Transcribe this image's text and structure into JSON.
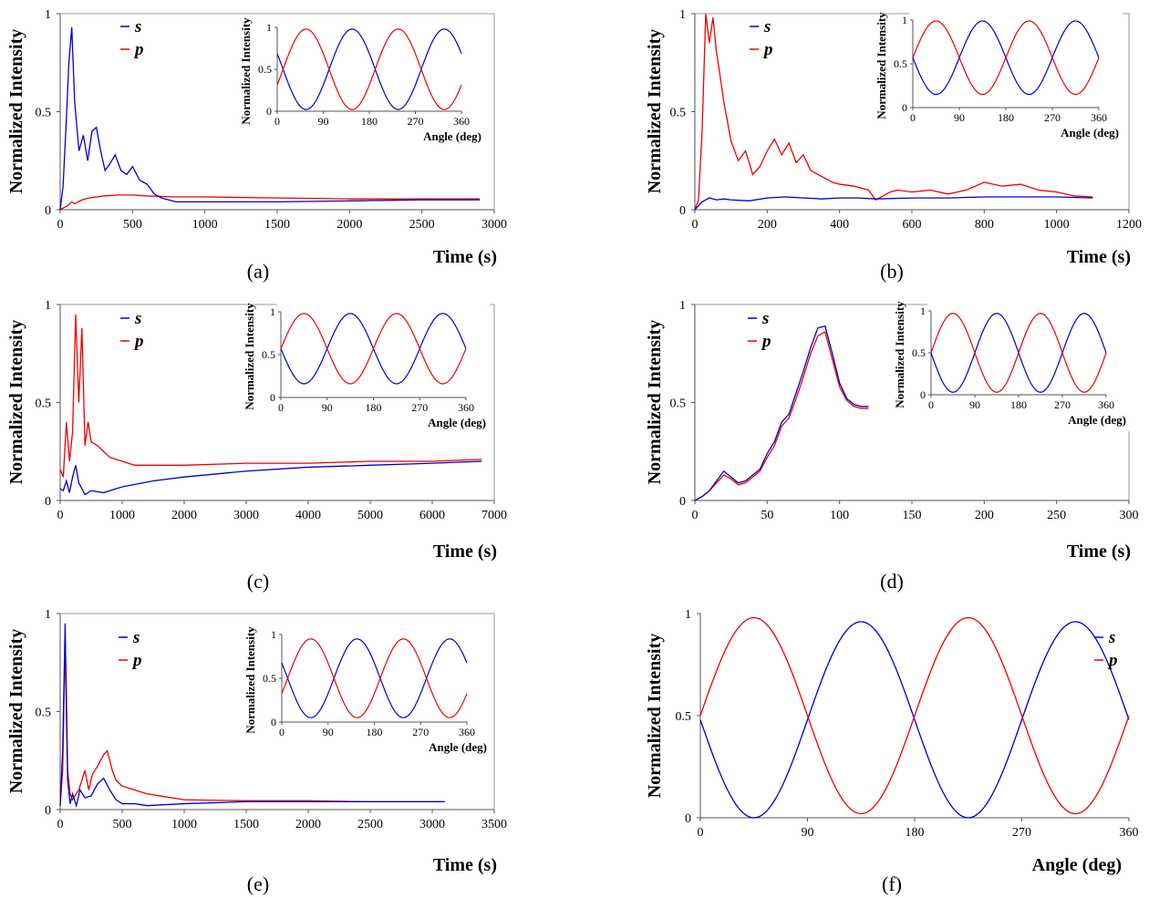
{
  "colors": {
    "s": "#0000cc",
    "p": "#ee0000",
    "frame": "#999999"
  },
  "chart_data": [
    {
      "type": "line",
      "panel_label": "(a)",
      "xlabel": "Time (s)",
      "ylabel": "Normalized Intensity",
      "xticks": [
        "0",
        "500",
        "1000",
        "1500",
        "2000",
        "2500",
        "3000"
      ],
      "yticks": [
        "0",
        "0.5",
        "1"
      ],
      "xlim": [
        0,
        3000
      ],
      "ylim": [
        0,
        1
      ],
      "series": [
        {
          "name": "s",
          "x": [
            0,
            20,
            40,
            60,
            80,
            100,
            130,
            160,
            190,
            220,
            250,
            280,
            310,
            340,
            380,
            420,
            460,
            500,
            550,
            600,
            650,
            700,
            800,
            1000,
            1500,
            2000,
            2500,
            2900
          ],
          "y": [
            0,
            0.12,
            0.42,
            0.75,
            0.93,
            0.55,
            0.3,
            0.38,
            0.25,
            0.4,
            0.42,
            0.3,
            0.2,
            0.23,
            0.28,
            0.2,
            0.18,
            0.22,
            0.15,
            0.13,
            0.08,
            0.06,
            0.04,
            0.04,
            0.04,
            0.045,
            0.05,
            0.05
          ]
        },
        {
          "name": "p",
          "x": [
            0,
            50,
            80,
            100,
            150,
            200,
            300,
            400,
            500,
            600,
            800,
            1000,
            1500,
            2000,
            2500,
            2900
          ],
          "y": [
            0,
            0.02,
            0.04,
            0.03,
            0.05,
            0.06,
            0.07,
            0.075,
            0.075,
            0.07,
            0.065,
            0.065,
            0.06,
            0.055,
            0.055,
            0.055
          ]
        }
      ],
      "inset": {
        "xlabel": "Angle (deg)",
        "ylabel": "Normalized Intensity",
        "xticks": [
          "0",
          "90",
          "180",
          "270",
          "360"
        ],
        "yticks": [
          "0",
          "0.5",
          "1"
        ],
        "s_amp": [
          0.5,
          0.48
        ],
        "p_amp": [
          0.5,
          0.48
        ],
        "phase": 0
      }
    },
    {
      "type": "line",
      "panel_label": "(b)",
      "xlabel": "Time (s)",
      "ylabel": "Normalized Intensity",
      "xticks": [
        "0",
        "200",
        "400",
        "600",
        "800",
        "1000",
        "1200"
      ],
      "yticks": [
        "0",
        "0.5",
        "1"
      ],
      "xlim": [
        0,
        1200
      ],
      "ylim": [
        0,
        1
      ],
      "series": [
        {
          "name": "s",
          "x": [
            0,
            20,
            40,
            60,
            80,
            100,
            150,
            200,
            250,
            300,
            350,
            400,
            450,
            500,
            600,
            700,
            800,
            900,
            1000,
            1100
          ],
          "y": [
            0,
            0.04,
            0.06,
            0.05,
            0.055,
            0.05,
            0.045,
            0.06,
            0.065,
            0.06,
            0.055,
            0.06,
            0.06,
            0.055,
            0.06,
            0.06,
            0.065,
            0.065,
            0.065,
            0.06
          ]
        },
        {
          "name": "p",
          "x": [
            0,
            10,
            20,
            30,
            40,
            50,
            60,
            70,
            80,
            90,
            100,
            120,
            140,
            160,
            180,
            200,
            220,
            240,
            260,
            280,
            300,
            320,
            340,
            360,
            380,
            400,
            440,
            480,
            500,
            520,
            540,
            560,
            600,
            650,
            700,
            750,
            800,
            850,
            900,
            950,
            1000,
            1050,
            1100
          ],
          "y": [
            0,
            0.05,
            0.4,
            1,
            0.85,
            0.98,
            0.8,
            0.68,
            0.55,
            0.45,
            0.35,
            0.25,
            0.3,
            0.18,
            0.22,
            0.3,
            0.36,
            0.28,
            0.34,
            0.24,
            0.28,
            0.2,
            0.18,
            0.16,
            0.14,
            0.13,
            0.12,
            0.1,
            0.05,
            0.07,
            0.09,
            0.1,
            0.09,
            0.1,
            0.08,
            0.1,
            0.14,
            0.12,
            0.13,
            0.1,
            0.09,
            0.07,
            0.065
          ]
        }
      ],
      "inset": {
        "xlabel": "Angle (deg)",
        "ylabel": "Normalized Intensity",
        "xticks": [
          "0",
          "90",
          "180",
          "270",
          "360"
        ],
        "yticks": [
          "0",
          "0.5",
          "1"
        ],
        "s_amp": [
          0.57,
          0.42
        ],
        "p_amp": [
          0.57,
          0.42
        ],
        "phase": 1
      }
    },
    {
      "type": "line",
      "panel_label": "(c)",
      "xlabel": "Time (s)",
      "ylabel": "Normalized Intensity",
      "xticks": [
        "0",
        "1000",
        "2000",
        "3000",
        "4000",
        "5000",
        "6000",
        "7000"
      ],
      "yticks": [
        "0",
        "0.5",
        "1"
      ],
      "xlim": [
        0,
        7000
      ],
      "ylim": [
        0,
        1
      ],
      "series": [
        {
          "name": "s",
          "x": [
            0,
            50,
            100,
            150,
            200,
            250,
            300,
            350,
            400,
            500,
            700,
            1000,
            1500,
            2000,
            3000,
            4000,
            5000,
            6000,
            6800
          ],
          "y": [
            0.06,
            0.05,
            0.1,
            0.04,
            0.12,
            0.18,
            0.09,
            0.06,
            0.03,
            0.05,
            0.04,
            0.07,
            0.1,
            0.12,
            0.15,
            0.17,
            0.18,
            0.19,
            0.2
          ]
        },
        {
          "name": "p",
          "x": [
            0,
            50,
            100,
            150,
            200,
            250,
            300,
            350,
            400,
            450,
            500,
            600,
            700,
            800,
            1000,
            1200,
            1500,
            2000,
            3000,
            4000,
            5000,
            6000,
            6800
          ],
          "y": [
            0.16,
            0.12,
            0.4,
            0.2,
            0.35,
            0.95,
            0.5,
            0.88,
            0.28,
            0.4,
            0.3,
            0.28,
            0.25,
            0.22,
            0.2,
            0.18,
            0.18,
            0.18,
            0.19,
            0.19,
            0.2,
            0.2,
            0.21
          ]
        }
      ],
      "inset": {
        "xlabel": "Angle (deg)",
        "ylabel": "Normalized Intensity",
        "xticks": [
          "0",
          "90",
          "180",
          "270",
          "360"
        ],
        "yticks": [
          "0",
          "0.5",
          "1"
        ],
        "s_amp": [
          0.57,
          0.41
        ],
        "p_amp": [
          0.57,
          0.41
        ],
        "phase": 1
      }
    },
    {
      "type": "line",
      "panel_label": "(d)",
      "xlabel": "Time (s)",
      "ylabel": "Normalized Intensity",
      "xticks": [
        "0",
        "50",
        "100",
        "150",
        "200",
        "250",
        "300"
      ],
      "yticks": [
        "0",
        "0.5",
        "1"
      ],
      "xlim": [
        0,
        300
      ],
      "ylim": [
        0,
        1
      ],
      "series": [
        {
          "name": "s",
          "x": [
            0,
            5,
            10,
            15,
            20,
            25,
            30,
            35,
            40,
            45,
            50,
            55,
            60,
            65,
            70,
            75,
            80,
            85,
            90,
            95,
            100,
            105,
            110,
            115,
            120
          ],
          "y": [
            0,
            0.02,
            0.05,
            0.1,
            0.15,
            0.12,
            0.09,
            0.1,
            0.13,
            0.16,
            0.24,
            0.3,
            0.4,
            0.44,
            0.55,
            0.66,
            0.78,
            0.88,
            0.89,
            0.75,
            0.6,
            0.52,
            0.49,
            0.48,
            0.48
          ]
        },
        {
          "name": "p",
          "x": [
            0,
            5,
            10,
            15,
            20,
            25,
            30,
            35,
            40,
            45,
            50,
            55,
            60,
            65,
            70,
            75,
            80,
            85,
            90,
            95,
            100,
            105,
            110,
            115,
            120
          ],
          "y": [
            0,
            0.02,
            0.05,
            0.09,
            0.13,
            0.11,
            0.08,
            0.09,
            0.12,
            0.15,
            0.22,
            0.28,
            0.38,
            0.42,
            0.52,
            0.63,
            0.75,
            0.84,
            0.86,
            0.72,
            0.58,
            0.51,
            0.48,
            0.47,
            0.47
          ]
        }
      ],
      "inset": {
        "xlabel": "Angle (deg)",
        "ylabel": "Normalized Intensity",
        "xticks": [
          "0",
          "90",
          "180",
          "270",
          "360"
        ],
        "yticks": [
          "0",
          "0.5",
          "1"
        ],
        "s_amp": [
          0.5,
          0.47
        ],
        "p_amp": [
          0.5,
          0.47
        ],
        "phase": 1
      }
    },
    {
      "type": "line",
      "panel_label": "(e)",
      "xlabel": "Time (s)",
      "ylabel": "Normalized Intensity",
      "xticks": [
        "0",
        "500",
        "1000",
        "1500",
        "2000",
        "2500",
        "3000",
        "3500"
      ],
      "yticks": [
        "0",
        "0.5",
        "1"
      ],
      "xlim": [
        0,
        3500
      ],
      "ylim": [
        0,
        1
      ],
      "series": [
        {
          "name": "s",
          "x": [
            0,
            20,
            40,
            50,
            60,
            80,
            100,
            130,
            160,
            200,
            250,
            300,
            350,
            400,
            450,
            500,
            600,
            700,
            1000,
            1500,
            2000,
            2500,
            3100
          ],
          "y": [
            0.02,
            0.3,
            0.95,
            0.5,
            0.15,
            0.03,
            0.08,
            0.02,
            0.1,
            0.06,
            0.07,
            0.13,
            0.16,
            0.1,
            0.05,
            0.03,
            0.03,
            0.02,
            0.03,
            0.04,
            0.04,
            0.04,
            0.04
          ]
        },
        {
          "name": "p",
          "x": [
            0,
            20,
            40,
            50,
            60,
            80,
            100,
            150,
            200,
            230,
            260,
            300,
            350,
            380,
            420,
            450,
            500,
            600,
            700,
            800,
            1000,
            1500,
            2000,
            2500,
            3100
          ],
          "y": [
            0.02,
            0.2,
            0.85,
            0.6,
            0.2,
            0.08,
            0.05,
            0.1,
            0.2,
            0.1,
            0.18,
            0.22,
            0.28,
            0.3,
            0.2,
            0.15,
            0.12,
            0.1,
            0.08,
            0.07,
            0.05,
            0.045,
            0.045,
            0.04,
            0.04
          ]
        }
      ],
      "inset": {
        "xlabel": "Angle (deg)",
        "ylabel": "Normalized Intensity",
        "xticks": [
          "0",
          "90",
          "180",
          "270",
          "360"
        ],
        "yticks": [
          "0",
          "0.5",
          "1"
        ],
        "s_amp": [
          0.5,
          0.45
        ],
        "p_amp": [
          0.5,
          0.45
        ],
        "phase": 0
      }
    },
    {
      "type": "line",
      "panel_label": "(f)",
      "xlabel": "Angle (deg)",
      "ylabel": "Normalized Intensity",
      "xticks": [
        "0",
        "90",
        "180",
        "270",
        "360"
      ],
      "yticks": [
        "0",
        "0.5",
        "1"
      ],
      "xlim": [
        0,
        360
      ],
      "ylim": [
        0,
        1
      ],
      "legend_position": "right",
      "series": [
        {
          "name": "s",
          "function": "0.48 + 0.48*cos(2*(angle+45)*pi/180) style; minima near 45 and 225, maxima near 135 and 315"
        },
        {
          "name": "p",
          "function": "maxima near 45 and 225, minima near 135 and 315"
        }
      ],
      "inset": null
    }
  ],
  "legend": {
    "s": "s",
    "p": "p"
  }
}
